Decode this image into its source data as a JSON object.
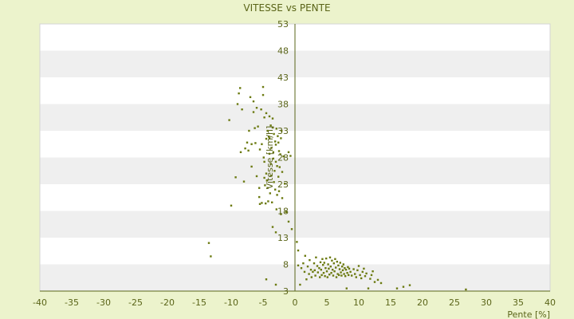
{
  "chart_data": {
    "type": "scatter",
    "title": "VITESSE vs PENTE",
    "xlabel": "Pente [%]",
    "ylabel": "Vitesse [km/h]",
    "xlim": [
      -40,
      40
    ],
    "ylim": [
      3,
      53
    ],
    "xticks": [
      -40,
      -35,
      -30,
      -25,
      -20,
      -15,
      -10,
      -5,
      0,
      5,
      10,
      15,
      20,
      25,
      30,
      35,
      40
    ],
    "yticks": [
      3,
      8,
      13,
      18,
      23,
      28,
      33,
      38,
      43,
      48,
      53
    ],
    "grid": "horizontal alternating bands",
    "legend": "none",
    "colors": {
      "background": "#ecf3cc",
      "plot_band_light": "#ffffff",
      "plot_band_dark": "#efefef",
      "axis": "#5a6418",
      "point": "#6b7a10"
    },
    "series": [
      {
        "points": [
          [
            -13.5,
            12
          ],
          [
            -13.2,
            9.5
          ],
          [
            -10,
            19
          ],
          [
            -10.3,
            35
          ],
          [
            -9.3,
            24.3
          ],
          [
            -9,
            38
          ],
          [
            -8.8,
            40
          ],
          [
            -8.6,
            41
          ],
          [
            -8.5,
            29
          ],
          [
            -8.3,
            37
          ],
          [
            -8,
            23.5
          ],
          [
            -7.8,
            29.7
          ],
          [
            -7.5,
            30.8
          ],
          [
            -7.3,
            29.3
          ],
          [
            -7.2,
            33
          ],
          [
            -7,
            39.3
          ],
          [
            -6.8,
            30.5
          ],
          [
            -6.8,
            26.3
          ],
          [
            -6.5,
            36.5
          ],
          [
            -6.5,
            38.5
          ],
          [
            -6.3,
            33.5
          ],
          [
            -6.2,
            30.7
          ],
          [
            -6,
            37.3
          ],
          [
            -6,
            24.5
          ],
          [
            -5.8,
            33.8
          ],
          [
            -5.6,
            22.3
          ],
          [
            -5.6,
            20.6
          ],
          [
            -5.5,
            29.5
          ],
          [
            -5.5,
            19.3
          ],
          [
            -5.3,
            37
          ],
          [
            -5.2,
            30.5
          ],
          [
            -5.2,
            19.5
          ],
          [
            -5,
            39.7
          ],
          [
            -5,
            41.2
          ],
          [
            -4.9,
            28
          ],
          [
            -4.8,
            35.5
          ],
          [
            -4.8,
            27.2
          ],
          [
            -4.8,
            24.2
          ],
          [
            -4.7,
            22.8
          ],
          [
            -4.6,
            19.4
          ],
          [
            -4.5,
            36.3
          ],
          [
            -4.5,
            31.5
          ],
          [
            -4.5,
            25
          ],
          [
            -4.4,
            23.7
          ],
          [
            -4.3,
            33
          ],
          [
            -4.3,
            22.3
          ],
          [
            -4.2,
            19.8
          ],
          [
            -4.1,
            31.9
          ],
          [
            -4,
            35.7
          ],
          [
            -4,
            31.6
          ],
          [
            -4,
            28.7
          ],
          [
            -3.9,
            21.3
          ],
          [
            -3.8,
            34
          ],
          [
            -3.8,
            26.8
          ],
          [
            -3.7,
            29.8
          ],
          [
            -3.7,
            24.6
          ],
          [
            -3.6,
            19.6
          ],
          [
            -3.5,
            35.3
          ],
          [
            -3.5,
            33.6
          ],
          [
            -3.5,
            15
          ],
          [
            -3.4,
            29
          ],
          [
            -3.4,
            27.8
          ],
          [
            -3.3,
            32.4
          ],
          [
            -3.3,
            23.4
          ],
          [
            -3.2,
            25.5
          ],
          [
            -3.1,
            31
          ],
          [
            -3.1,
            22
          ],
          [
            -3,
            30.4
          ],
          [
            -3,
            27.2
          ],
          [
            -3,
            14
          ],
          [
            -2.9,
            33.4
          ],
          [
            -2.9,
            18.3
          ],
          [
            -2.8,
            26.4
          ],
          [
            -2.8,
            21
          ],
          [
            -2.7,
            32
          ],
          [
            -2.6,
            30.8
          ],
          [
            -2.6,
            24.4
          ],
          [
            -2.5,
            29.2
          ],
          [
            -2.5,
            21.7
          ],
          [
            -2.4,
            26.2
          ],
          [
            -2.3,
            28.6
          ],
          [
            -2.2,
            31.6
          ],
          [
            -2.2,
            17.4
          ],
          [
            -2.1,
            33
          ],
          [
            -2,
            20.4
          ],
          [
            -2,
            25.3
          ],
          [
            -1.8,
            28.2
          ],
          [
            -1.6,
            23.1
          ],
          [
            -1.4,
            17.8
          ],
          [
            -1,
            29
          ],
          [
            -1,
            16
          ],
          [
            -0.7,
            28.3
          ],
          [
            -0.5,
            14.6
          ],
          [
            -4.5,
            5.2
          ],
          [
            -3,
            4.2
          ],
          [
            0.3,
            12.2
          ],
          [
            0.5,
            7.8
          ],
          [
            0.5,
            10.6
          ],
          [
            0.8,
            4.2
          ],
          [
            1,
            7.3
          ],
          [
            1.3,
            8.2
          ],
          [
            1.5,
            6.6
          ],
          [
            1.6,
            9.6
          ],
          [
            1.8,
            5.2
          ],
          [
            2,
            7.6
          ],
          [
            2.2,
            6.2
          ],
          [
            2.3,
            8.8
          ],
          [
            2.5,
            7
          ],
          [
            2.6,
            5.6
          ],
          [
            2.8,
            6.6
          ],
          [
            3,
            8.2
          ],
          [
            3.1,
            6.9
          ],
          [
            3.2,
            5.9
          ],
          [
            3.3,
            9.3
          ],
          [
            3.5,
            7.7
          ],
          [
            3.6,
            6.5
          ],
          [
            3.8,
            7.3
          ],
          [
            3.9,
            5.6
          ],
          [
            4,
            8.4
          ],
          [
            4.1,
            7.0
          ],
          [
            4.2,
            6.0
          ],
          [
            4.3,
            9
          ],
          [
            4.4,
            7.9
          ],
          [
            4.5,
            6.4
          ],
          [
            4.6,
            8.3
          ],
          [
            4.7,
            5.8
          ],
          [
            4.8,
            7.3
          ],
          [
            4.9,
            9.1
          ],
          [
            5,
            6.7
          ],
          [
            5.1,
            5.6
          ],
          [
            5.2,
            8.0
          ],
          [
            5.3,
            7.2
          ],
          [
            5.4,
            6.1
          ],
          [
            5.5,
            9.3
          ],
          [
            5.6,
            7.6
          ],
          [
            5.7,
            6.4
          ],
          [
            5.8,
            8.7
          ],
          [
            5.9,
            7.0
          ],
          [
            6,
            5.9
          ],
          [
            6.1,
            8.2
          ],
          [
            6.2,
            6.7
          ],
          [
            6.3,
            9.0
          ],
          [
            6.4,
            7.4
          ],
          [
            6.5,
            5.6
          ],
          [
            6.6,
            8.5
          ],
          [
            6.7,
            6.2
          ],
          [
            6.8,
            7.8
          ],
          [
            6.9,
            6.0
          ],
          [
            7,
            7.1
          ],
          [
            7.1,
            8.3
          ],
          [
            7.2,
            6.5
          ],
          [
            7.3,
            5.9
          ],
          [
            7.4,
            7.6
          ],
          [
            7.5,
            6.9
          ],
          [
            7.6,
            8.0
          ],
          [
            7.7,
            6.2
          ],
          [
            7.8,
            7.3
          ],
          [
            7.9,
            5.8
          ],
          [
            8,
            7.0
          ],
          [
            8.1,
            3.5
          ],
          [
            8.2,
            6.4
          ],
          [
            8.3,
            7.5
          ],
          [
            8.4,
            6.0
          ],
          [
            8.5,
            7.2
          ],
          [
            8.7,
            6.6
          ],
          [
            8.9,
            5.9
          ],
          [
            9.2,
            7.1
          ],
          [
            9.4,
            6.2
          ],
          [
            9.6,
            5.6
          ],
          [
            9.8,
            6.9
          ],
          [
            10,
            7.7
          ],
          [
            10.2,
            6.0
          ],
          [
            10.4,
            5.4
          ],
          [
            10.6,
            6.6
          ],
          [
            10.8,
            7.2
          ],
          [
            11,
            5.8
          ],
          [
            11.2,
            6.3
          ],
          [
            11.5,
            3.5
          ],
          [
            11.8,
            5.3
          ],
          [
            12,
            6.0
          ],
          [
            12.2,
            6.7
          ],
          [
            12.5,
            4.7
          ],
          [
            13,
            5.1
          ],
          [
            13.5,
            4.5
          ],
          [
            16,
            3.5
          ],
          [
            17,
            3.8
          ],
          [
            18,
            4.1
          ],
          [
            26.8,
            3.3
          ]
        ]
      }
    ]
  }
}
